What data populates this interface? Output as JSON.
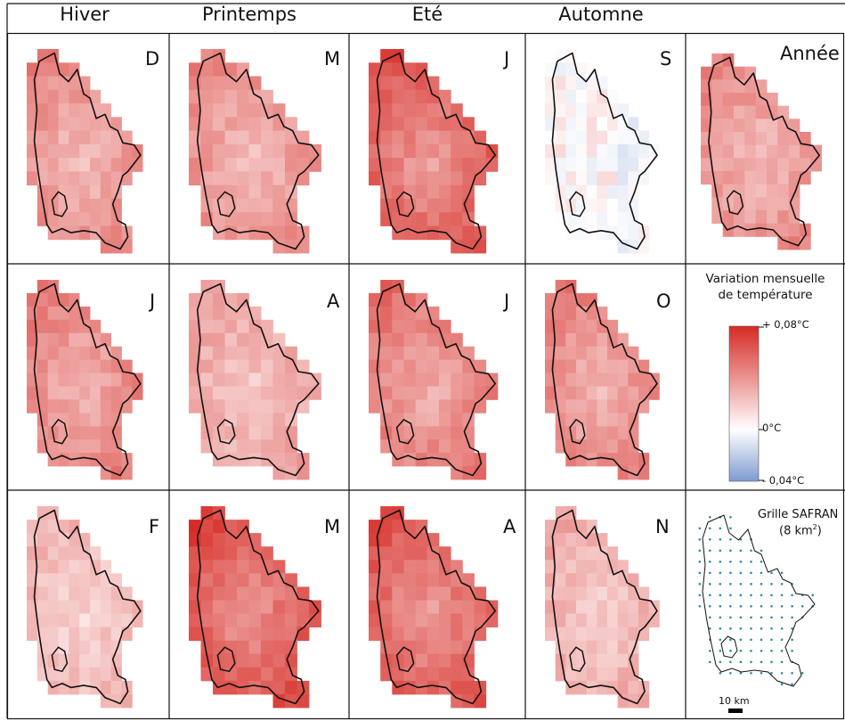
{
  "columns": [
    "Hiver",
    "Printemps",
    "Eté",
    "Automne"
  ],
  "months": [
    [
      "D",
      "M",
      "J",
      "S"
    ],
    [
      "J",
      "A",
      "J",
      "O"
    ],
    [
      "F",
      "M",
      "A",
      "N"
    ]
  ],
  "annual_label": "Année",
  "legend": {
    "title_line1": "Variation mensuelle",
    "title_line2": "de température",
    "max_label": "+ 0,08°C",
    "zero_label": "0°C",
    "min_label": "- 0,04°C",
    "max_value": 0.08,
    "min_value": -0.04,
    "color_max": "#d62a24",
    "color_zero": "#ffffff",
    "color_min": "#7e9bd0"
  },
  "grid_panel": {
    "title_line1": "Grille SAFRAN",
    "title_line2_prefix": "(8 km",
    "title_line2_sup": "2",
    "title_line2_suffix": ")",
    "scale_label": "10 km",
    "dot_color": "#2f8a9a"
  },
  "map_warmth": [
    [
      0.55,
      0.55,
      0.8,
      0.02
    ],
    [
      0.6,
      0.45,
      0.65,
      0.6
    ],
    [
      0.35,
      0.85,
      0.8,
      0.4
    ]
  ],
  "annual_warmth": 0.55
}
